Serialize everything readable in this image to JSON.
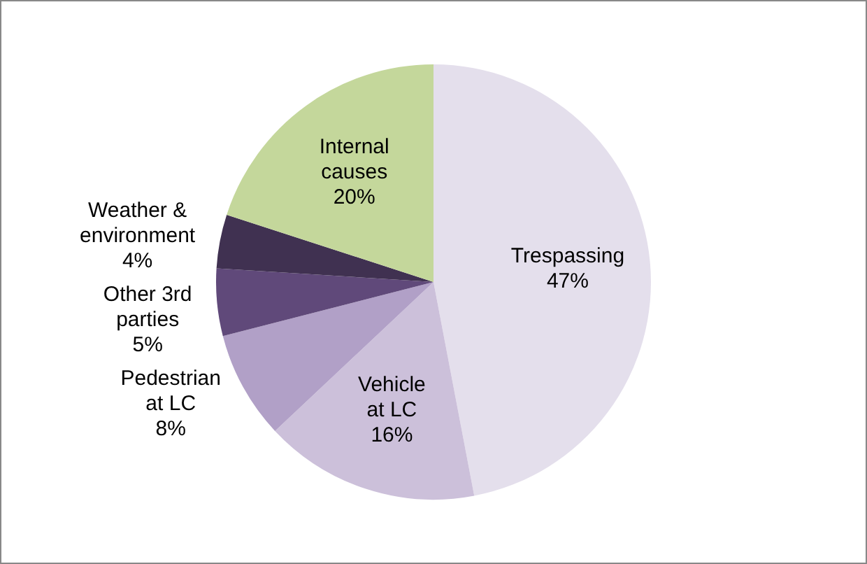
{
  "chart_data": {
    "type": "pie",
    "categories": [
      "Trespassing",
      "Vehicle at LC",
      "Pedestrian at LC",
      "Other 3rd parties",
      "Weather & environment",
      "Internal causes"
    ],
    "values": [
      47,
      16,
      8,
      5,
      4,
      20
    ],
    "value_labels": [
      "47%",
      "16%",
      "8%",
      "5%",
      "4%",
      "20%"
    ],
    "colors": [
      "#e4dfec",
      "#ccc0da",
      "#b1a0c7",
      "#60497a",
      "#403151",
      "#c4d79b"
    ],
    "legend": false
  }
}
